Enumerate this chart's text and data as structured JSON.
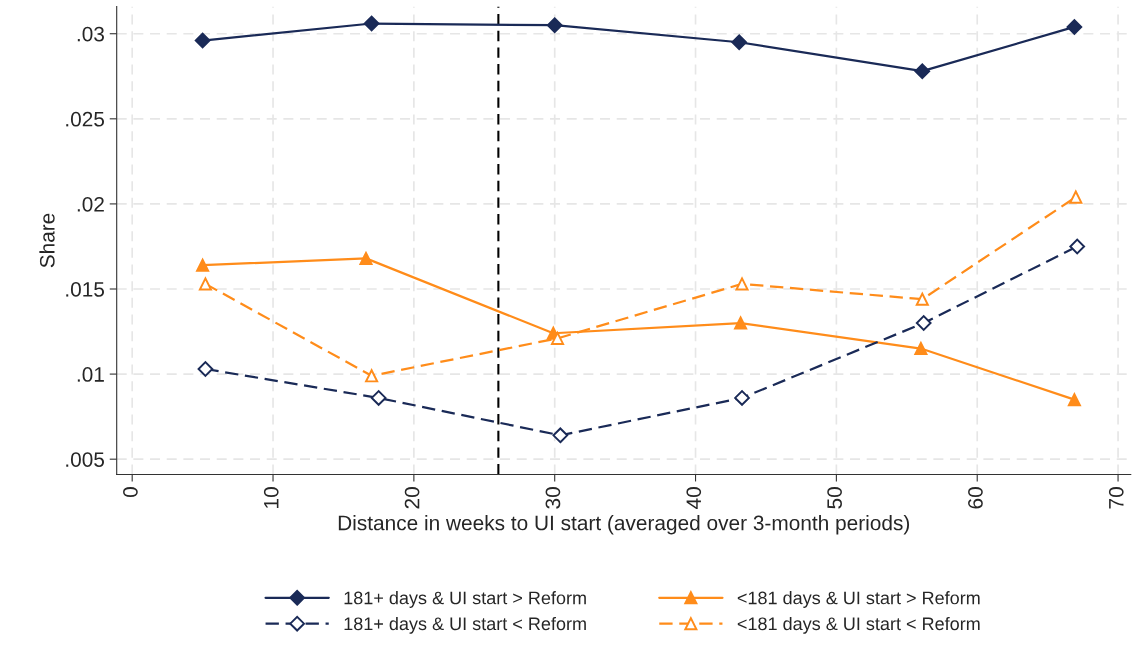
{
  "chart_data": {
    "type": "line",
    "xlabel": "Distance in weeks to UI start (averaged over 3-month periods)",
    "ylabel": "Share",
    "xlim": [
      -1.1,
      70.9
    ],
    "ylim": [
      0.0041,
      0.0316
    ],
    "xticks": [
      0,
      10,
      20,
      30,
      40,
      50,
      60,
      70
    ],
    "yticks": [
      {
        "value": 0.005,
        "label": ".005"
      },
      {
        "value": 0.01,
        "label": ".01"
      },
      {
        "value": 0.015,
        "label": ".015"
      },
      {
        "value": 0.02,
        "label": ".02"
      },
      {
        "value": 0.025,
        "label": ".025"
      },
      {
        "value": 0.03,
        "label": ".03"
      }
    ],
    "grid": true,
    "legend": "bottom",
    "ref_lines": [
      {
        "axis": "x",
        "value": 26,
        "color": "#000000",
        "line_style": "dashed"
      }
    ],
    "series": [
      {
        "name": "181+ days & UI start > Reform",
        "color": "#1a2a57",
        "marker": "diamond",
        "line_style": "solid",
        "x": [
          5,
          17,
          30,
          43.1,
          56.1,
          66.9
        ],
        "values": [
          0.0296,
          0.0306,
          0.0305,
          0.0295,
          0.0278,
          0.0304
        ]
      },
      {
        "name": "<181 days & UI start > Reform",
        "color": "#ff8c1a",
        "marker": "triangle",
        "line_style": "solid",
        "x": [
          5,
          16.6,
          29.9,
          43.2,
          56,
          66.9
        ],
        "values": [
          0.0164,
          0.0168,
          0.0124,
          0.013,
          0.0115,
          0.0085
        ]
      },
      {
        "name": "181+ days & UI start < Reform",
        "color": "#1a2a57",
        "marker": "diamond",
        "line_style": "dashed",
        "x": [
          5.2,
          17.5,
          30.4,
          43.3,
          56.2,
          67.1
        ],
        "values": [
          0.0103,
          0.0086,
          0.0064,
          0.0086,
          0.013,
          0.0175
        ]
      },
      {
        "name": "<181 days & UI start < Reform",
        "color": "#ff8c1a",
        "marker": "triangle",
        "line_style": "dashed",
        "x": [
          5.2,
          17,
          30.2,
          43.3,
          56.1,
          67
        ],
        "values": [
          0.0153,
          0.0099,
          0.0121,
          0.0153,
          0.0144,
          0.0204
        ]
      }
    ]
  }
}
